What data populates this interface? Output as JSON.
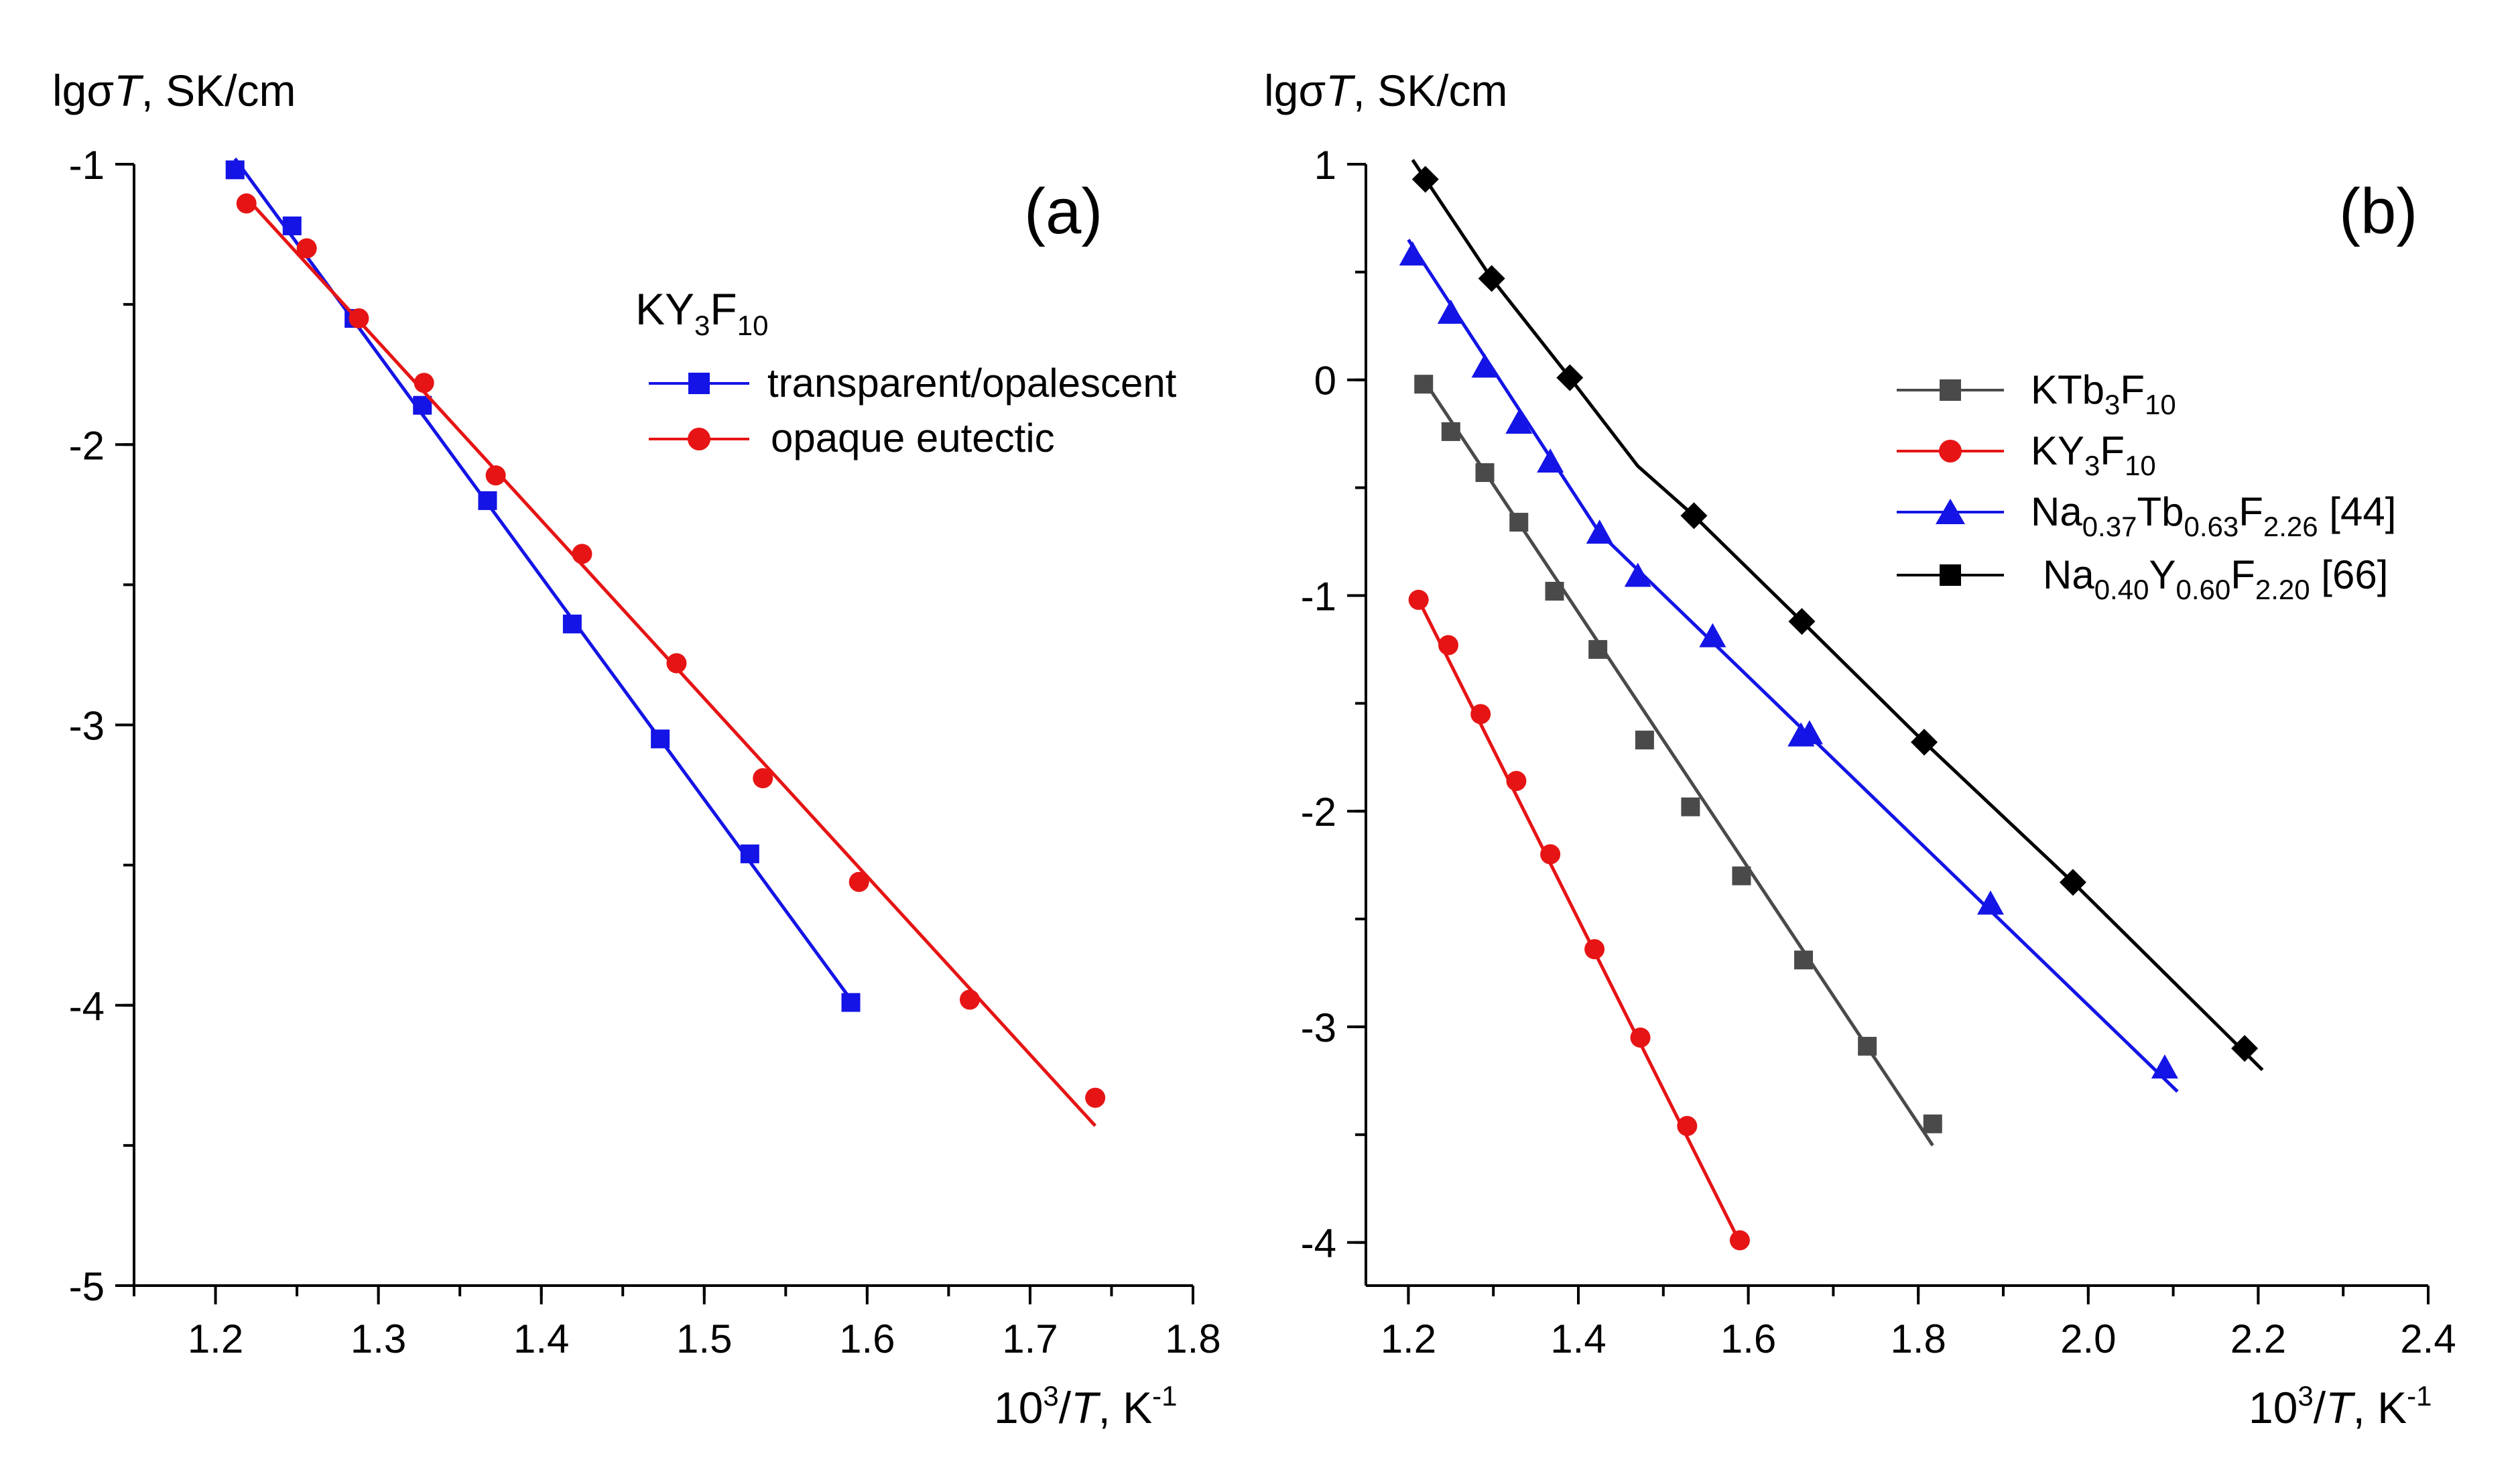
{
  "chart_data": [
    {
      "id": "a",
      "type": "scatter",
      "panel_label": "(a)",
      "ylabel": "lgσT, SK/cm",
      "xlabel": "10³/T, K⁻¹",
      "xlim": [
        1.15,
        1.8
      ],
      "ylim": [
        -5,
        -1
      ],
      "x_ticks": [
        "1.2",
        "1.3",
        "1.4",
        "1.5",
        "1.6",
        "1.7",
        "1.8"
      ],
      "y_ticks": [
        "-1",
        "-2",
        "-3",
        "-4",
        "-5"
      ],
      "legend_title": {
        "main": "KY",
        "s1": "3",
        "mid": "F",
        "s2": "10"
      },
      "series": [
        {
          "name": "transparent/opalescent",
          "color": "#1414e6",
          "marker": "square",
          "x": [
            1.212,
            1.247,
            1.285,
            1.327,
            1.367,
            1.419,
            1.473,
            1.528,
            1.59
          ],
          "y": [
            -1.02,
            -1.22,
            -1.55,
            -1.86,
            -2.2,
            -2.64,
            -3.05,
            -3.46,
            -3.99
          ],
          "fit_x": [
            1.212,
            1.59
          ],
          "fit_y": [
            -0.98,
            -3.98
          ]
        },
        {
          "name": "opaque eutectic",
          "color": "#e61414",
          "marker": "circle",
          "x": [
            1.219,
            1.256,
            1.288,
            1.328,
            1.372,
            1.425,
            1.483,
            1.536,
            1.595,
            1.663,
            1.74
          ],
          "y": [
            -1.14,
            -1.3,
            -1.55,
            -1.78,
            -2.11,
            -2.39,
            -2.78,
            -3.19,
            -3.56,
            -3.98,
            -4.33
          ],
          "fit_x": [
            1.219,
            1.74
          ],
          "fit_y": [
            -1.12,
            -4.43
          ]
        }
      ]
    },
    {
      "id": "b",
      "type": "scatter",
      "panel_label": "(b)",
      "ylabel": "lgσT, SK/cm",
      "xlabel": "10³/T, K⁻¹",
      "xlim": [
        1.15,
        2.4
      ],
      "ylim": [
        -4.2,
        1
      ],
      "x_ticks": [
        "1.2",
        "1.4",
        "1.6",
        "1.8",
        "2.0",
        "2.2",
        "2.4"
      ],
      "y_ticks": [
        "1",
        "0",
        "-1",
        "-2",
        "-3",
        "-4"
      ],
      "series": [
        {
          "name_parts": {
            "main": "KTb",
            "s1": "3",
            "mid": "F",
            "s2": "10",
            "tail": ""
          },
          "color": "#4a4a4a",
          "marker": "square",
          "x": [
            1.218,
            1.25,
            1.29,
            1.33,
            1.372,
            1.423,
            1.478,
            1.532,
            1.592,
            1.665,
            1.74,
            1.817
          ],
          "y": [
            -0.02,
            -0.24,
            -0.43,
            -0.66,
            -0.98,
            -1.25,
            -1.67,
            -1.98,
            -2.3,
            -2.69,
            -3.09,
            -3.45
          ],
          "fit_x": [
            1.218,
            1.817
          ],
          "fit_y": [
            0.0,
            -3.55
          ]
        },
        {
          "name_parts": {
            "main": "KY",
            "s1": "3",
            "mid": "F",
            "s2": "10",
            "tail": ""
          },
          "color": "#e61414",
          "marker": "circle",
          "x": [
            1.212,
            1.247,
            1.285,
            1.327,
            1.367,
            1.419,
            1.473,
            1.528,
            1.59
          ],
          "y": [
            -1.02,
            -1.23,
            -1.55,
            -1.86,
            -2.2,
            -2.64,
            -3.05,
            -3.46,
            -3.99
          ],
          "fit_x": [
            1.212,
            1.59
          ],
          "fit_y": [
            -1.02,
            -4.0
          ]
        },
        {
          "name_parts": {
            "main": "Na",
            "s1": "0.37",
            "mid": "Tb",
            "s2": "0.63",
            "mid2": "F",
            "s3": "2.26",
            "tail": " [44]"
          },
          "color": "#1414e6",
          "marker": "triangle",
          "x": [
            1.205,
            1.25,
            1.29,
            1.33,
            1.367,
            1.425,
            1.47,
            1.558,
            1.662,
            1.672,
            1.885,
            2.09
          ],
          "y": [
            0.58,
            0.31,
            0.06,
            -0.2,
            -0.38,
            -0.71,
            -0.91,
            -1.19,
            -1.65,
            -1.64,
            -2.43,
            -3.19
          ],
          "fit_x": [
            1.2,
            1.425,
            2.105
          ],
          "fit_y": [
            0.65,
            -0.71,
            -3.3
          ]
        },
        {
          "name_parts": {
            "main": "Na",
            "s1": "0.40",
            "mid": "Y",
            "s2": "0.60",
            "mid2": "F",
            "s3": "2.20",
            "tail": " [66]"
          },
          "color": "#000000",
          "marker": "diamond",
          "x": [
            1.22,
            1.298,
            1.39,
            1.536,
            1.663,
            1.807,
            1.982,
            2.184
          ],
          "y": [
            0.93,
            0.47,
            0.01,
            -0.63,
            -1.12,
            -1.68,
            -2.33,
            -3.1
          ],
          "fit_x": [
            1.205,
            1.298,
            1.39,
            1.47,
            1.536,
            1.663,
            1.807,
            1.982,
            2.205
          ],
          "fit_y": [
            1.02,
            0.47,
            0.01,
            -0.4,
            -0.63,
            -1.12,
            -1.68,
            -2.33,
            -3.2
          ]
        }
      ]
    }
  ]
}
